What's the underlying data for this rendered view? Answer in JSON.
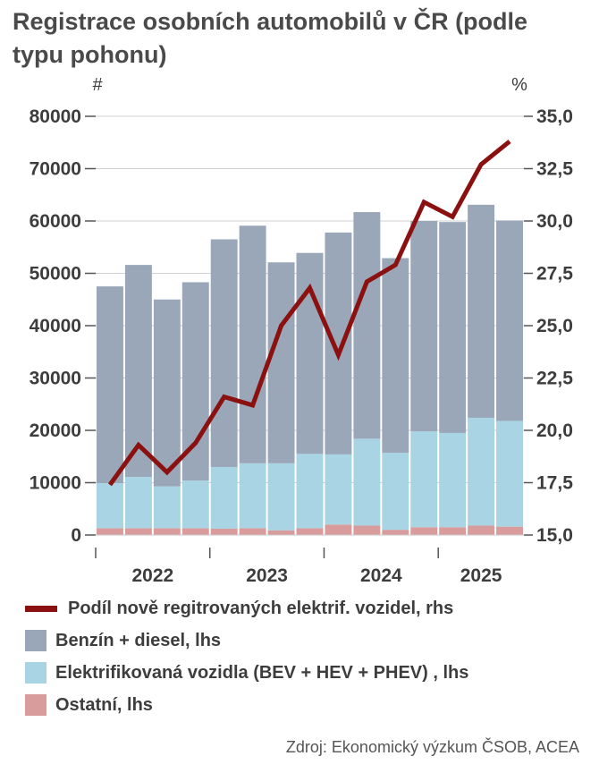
{
  "title": "Registrace osobních automobilů v ČR (podle typu pohonu)",
  "source": "Zdroj: Ekonomický výzkum ČSOB, ACEA",
  "colors": {
    "benzin_diesel": "#9aa7b8",
    "elektrifikovana": "#a8d4e3",
    "ostatni": "#d89c9c",
    "share_line": "#8b1010",
    "grid": "#d0d0d0",
    "axis": "#555555"
  },
  "chart_data": {
    "type": "bar",
    "stacked": true,
    "title": "Registrace osobních automobilů v ČR (podle typu pohonu)",
    "y_left_unit": "#",
    "y_right_unit": "%",
    "ylim_left": [
      0,
      80000
    ],
    "ylim_right": [
      15.0,
      35.0
    ],
    "left_ticks": [
      "0",
      "10000",
      "20000",
      "30000",
      "40000",
      "50000",
      "60000",
      "70000",
      "80000"
    ],
    "right_ticks": [
      "15,0",
      "17,5",
      "20,0",
      "22,5",
      "25,0",
      "27,5",
      "30,0",
      "32,5",
      "35,0"
    ],
    "year_labels": [
      "2022",
      "2023",
      "2024",
      "2025"
    ],
    "quarters": [
      "2022 Q1",
      "2022 Q2",
      "2022 Q3",
      "2022 Q4",
      "2023 Q1",
      "2023 Q2",
      "2023 Q3",
      "2023 Q4",
      "2024 Q1",
      "2024 Q2",
      "2024 Q3",
      "2024 Q4",
      "2025 Q1",
      "2025 Q2",
      "2025 Q3"
    ],
    "series": [
      {
        "name": "Ostatní, lhs",
        "axis": "left",
        "kind": "bar",
        "values": [
          1300,
          1300,
          1300,
          1300,
          1200,
          1300,
          900,
          1300,
          2000,
          1800,
          1000,
          1500,
          1500,
          1800,
          1600
        ]
      },
      {
        "name": "Elektrifikovaná vozidla (BEV + HEV + PHEV) , lhs",
        "axis": "left",
        "kind": "bar",
        "values": [
          8600,
          9800,
          8000,
          9100,
          11800,
          12400,
          12800,
          14200,
          13400,
          16600,
          14700,
          18300,
          18000,
          20600,
          20200
        ]
      },
      {
        "name": "Benzín + diesel, lhs",
        "axis": "left",
        "kind": "bar",
        "values": [
          37600,
          40500,
          35700,
          37900,
          43500,
          45400,
          38400,
          38400,
          42400,
          43300,
          37200,
          40200,
          40300,
          40700,
          38300
        ]
      },
      {
        "name": "Podíl nově regitrovaných elektrif. vozidel, rhs",
        "axis": "right",
        "kind": "line",
        "values": [
          17.4,
          19.3,
          18.0,
          19.4,
          21.6,
          21.2,
          25.0,
          26.8,
          23.6,
          27.1,
          27.9,
          30.9,
          30.2,
          32.7,
          33.8
        ]
      }
    ]
  },
  "legend": [
    {
      "label": "Podíl nově regitrovaných elektrif. vozidel, rhs",
      "kind": "line",
      "color": "#8b1010"
    },
    {
      "label": "Benzín + diesel, lhs",
      "kind": "box",
      "color": "#9aa7b8"
    },
    {
      "label": "Elektrifikovaná vozidla (BEV + HEV + PHEV) , lhs",
      "kind": "box",
      "color": "#a8d4e3"
    },
    {
      "label": "Ostatní, lhs",
      "kind": "box",
      "color": "#d89c9c"
    }
  ]
}
